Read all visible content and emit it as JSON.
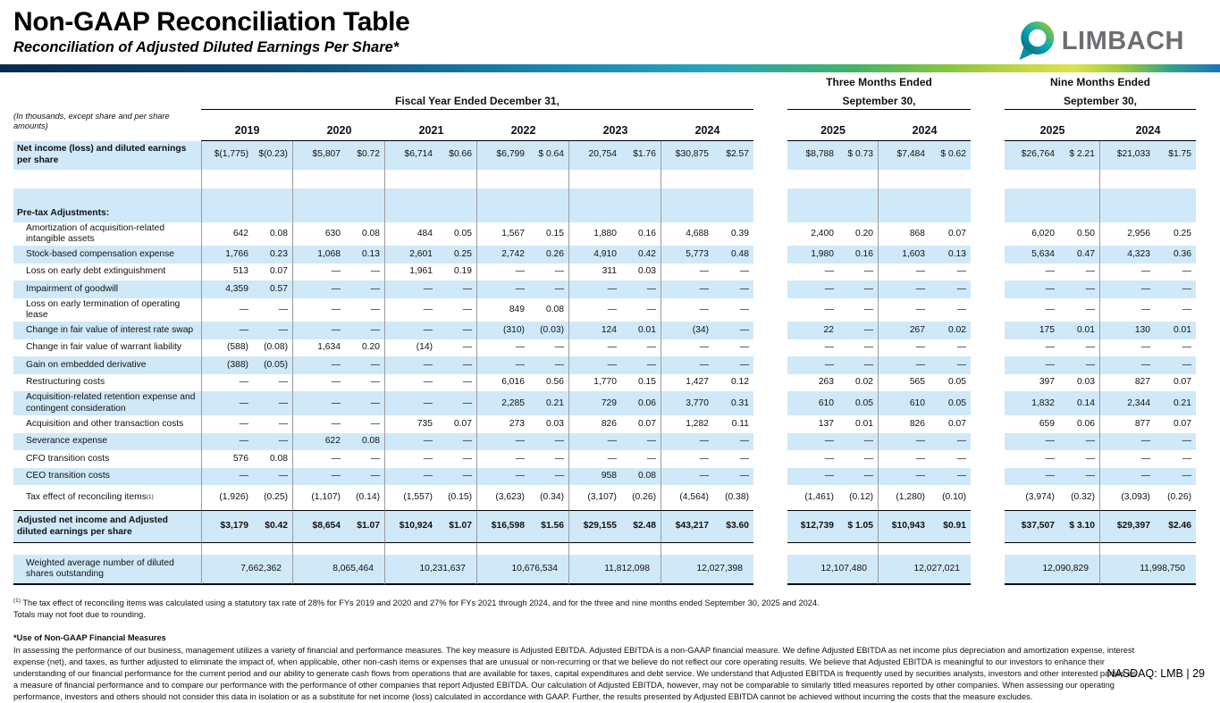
{
  "slide": {
    "title": "Non-GAAP Reconciliation Table",
    "subtitle": "Reconciliation of Adjusted Diluted Earnings Per Share*",
    "brand": "LIMBACH",
    "footer": "NASDAQ: LMB | 29"
  },
  "colors": {
    "stripe_blue": "#cfe9f9",
    "logo_gray": "#6d6e71",
    "accent_teal": "#00a7b5",
    "accent_green": "#8dc63f",
    "accent_navy": "#0a2a4c"
  },
  "table": {
    "units_note": "(In thousands, except share and per share amounts)",
    "groups": [
      {
        "title_line1": "",
        "title_line2": "Fiscal Year Ended December 31,",
        "years": [
          "2019",
          "2020",
          "2021",
          "2022",
          "2023",
          "2024"
        ]
      },
      {
        "title_line1": "Three Months Ended",
        "title_line2": "September 30,",
        "years": [
          "2025",
          "2024"
        ]
      },
      {
        "title_line1": "Nine Months Ended",
        "title_line2": "September 30,",
        "years": [
          "2025",
          "2024"
        ]
      }
    ],
    "rows": [
      {
        "label": "Net income (loss) and diluted earnings per share",
        "kind": "first",
        "blue": true,
        "boldLabel": true,
        "values": [
          "$(1,775)",
          "$(0.23)",
          "$5,807",
          "$0.72",
          "$6,714",
          "$0.66",
          "$6,799",
          "$ 0.64",
          "20,754",
          "$1.76",
          "$30,875",
          "$2.57",
          "$8,788",
          "$ 0.73",
          "$7,484",
          "$ 0.62",
          "$26,764",
          "$ 2.21",
          "$21,033",
          "$1.75"
        ]
      },
      {
        "label": "",
        "kind": "spacer",
        "blue": false
      },
      {
        "label": "Pre-tax Adjustments:",
        "kind": "section",
        "blue": true,
        "boldLabel": true
      },
      {
        "label": "Amortization of acquisition-related intangible assets",
        "kind": "item",
        "blue": false,
        "indent": true,
        "values": [
          "642",
          "0.08",
          "630",
          "0.08",
          "484",
          "0.05",
          "1,567",
          "0.15",
          "1,880",
          "0.16",
          "4,688",
          "0.39",
          "2,400",
          "0.20",
          "868",
          "0.07",
          "6,020",
          "0.50",
          "2,956",
          "0.25"
        ]
      },
      {
        "label": "Stock-based compensation expense",
        "kind": "item",
        "blue": true,
        "indent": true,
        "values": [
          "1,766",
          "0.23",
          "1,068",
          "0.13",
          "2,601",
          "0.25",
          "2,742",
          "0.26",
          "4,910",
          "0.42",
          "5,773",
          "0.48",
          "1,980",
          "0.16",
          "1,603",
          "0.13",
          "5,634",
          "0.47",
          "4,323",
          "0.36"
        ]
      },
      {
        "label": "Loss on early debt extinguishment",
        "kind": "item",
        "blue": false,
        "indent": true,
        "values": [
          "513",
          "0.07",
          "—",
          "—",
          "1,961",
          "0.19",
          "—",
          "—",
          "311",
          "0.03",
          "—",
          "—",
          "—",
          "—",
          "—",
          "—",
          "—",
          "—",
          "—",
          "—"
        ]
      },
      {
        "label": "Impairment of goodwill",
        "kind": "item",
        "blue": true,
        "indent": true,
        "values": [
          "4,359",
          "0.57",
          "—",
          "—",
          "—",
          "—",
          "—",
          "—",
          "—",
          "—",
          "—",
          "—",
          "—",
          "—",
          "—",
          "—",
          "—",
          "—",
          "—",
          "—"
        ]
      },
      {
        "label": "Loss on early termination of operating lease",
        "kind": "item",
        "blue": false,
        "indent": true,
        "values": [
          "—",
          "—",
          "—",
          "—",
          "—",
          "—",
          "849",
          "0.08",
          "—",
          "—",
          "—",
          "—",
          "—",
          "—",
          "—",
          "—",
          "—",
          "—",
          "—",
          "—"
        ]
      },
      {
        "label": "Change in fair value of interest rate swap",
        "kind": "item",
        "blue": true,
        "indent": true,
        "values": [
          "—",
          "—",
          "—",
          "—",
          "—",
          "—",
          "(310)",
          "(0.03)",
          "124",
          "0.01",
          "(34)",
          "—",
          "22",
          "—",
          "267",
          "0.02",
          "175",
          "0.01",
          "130",
          "0.01"
        ]
      },
      {
        "label": "Change in fair value of warrant liability",
        "kind": "item",
        "blue": false,
        "indent": true,
        "values": [
          "(588)",
          "(0.08)",
          "1,634",
          "0.20",
          "(14)",
          "—",
          "—",
          "—",
          "—",
          "—",
          "—",
          "—",
          "—",
          "—",
          "—",
          "—",
          "—",
          "—",
          "—",
          "—"
        ]
      },
      {
        "label": "Gain on embedded derivative",
        "kind": "item",
        "blue": true,
        "indent": true,
        "values": [
          "(388)",
          "(0.05)",
          "—",
          "—",
          "—",
          "—",
          "—",
          "—",
          "—",
          "—",
          "—",
          "—",
          "—",
          "—",
          "—",
          "—",
          "—",
          "—",
          "—",
          "—"
        ]
      },
      {
        "label": "Restructuring costs",
        "kind": "item",
        "blue": false,
        "indent": true,
        "values": [
          "—",
          "—",
          "—",
          "—",
          "—",
          "—",
          "6,016",
          "0.56",
          "1,770",
          "0.15",
          "1,427",
          "0.12",
          "263",
          "0.02",
          "565",
          "0.05",
          "397",
          "0.03",
          "827",
          "0.07"
        ]
      },
      {
        "label": "Acquisition-related retention expense and contingent consideration",
        "kind": "item",
        "blue": true,
        "indent": true,
        "values": [
          "—",
          "—",
          "—",
          "—",
          "—",
          "—",
          "2,285",
          "0.21",
          "729",
          "0.06",
          "3,770",
          "0.31",
          "610",
          "0.05",
          "610",
          "0.05",
          "1,832",
          "0.14",
          "2,344",
          "0.21"
        ]
      },
      {
        "label": "Acquisition and other transaction costs",
        "kind": "item",
        "blue": false,
        "indent": true,
        "values": [
          "—",
          "—",
          "—",
          "—",
          "735",
          "0.07",
          "273",
          "0.03",
          "826",
          "0.07",
          "1,282",
          "0.11",
          "137",
          "0.01",
          "826",
          "0.07",
          "659",
          "0.06",
          "877",
          "0.07"
        ]
      },
      {
        "label": "Severance expense",
        "kind": "item",
        "blue": true,
        "indent": true,
        "values": [
          "—",
          "—",
          "622",
          "0.08",
          "—",
          "—",
          "—",
          "—",
          "—",
          "—",
          "—",
          "—",
          "—",
          "—",
          "—",
          "—",
          "—",
          "—",
          "—",
          "—"
        ]
      },
      {
        "label": "CFO transition costs",
        "kind": "item",
        "blue": false,
        "indent": true,
        "values": [
          "576",
          "0.08",
          "—",
          "—",
          "—",
          "—",
          "—",
          "—",
          "—",
          "—",
          "—",
          "—",
          "—",
          "—",
          "—",
          "—",
          "—",
          "—",
          "—",
          "—"
        ]
      },
      {
        "label": "CEO transition costs",
        "kind": "item",
        "blue": true,
        "indent": true,
        "values": [
          "—",
          "—",
          "—",
          "—",
          "—",
          "—",
          "—",
          "—",
          "958",
          "0.08",
          "—",
          "—",
          "—",
          "—",
          "—",
          "—",
          "—",
          "—",
          "—",
          "—"
        ]
      },
      {
        "label": "Tax effect of reconciling items",
        "sup": "(1)",
        "kind": "tax",
        "blue": false,
        "indent": true,
        "values": [
          "(1,926)",
          "(0.25)",
          "(1,107)",
          "(0.14)",
          "(1,557)",
          "(0.15)",
          "(3,623)",
          "(0.34)",
          "(3,107)",
          "(0.26)",
          "(4,564)",
          "(0.38)",
          "(1,461)",
          "(0.12)",
          "(1,280)",
          "(0.10)",
          "(3,974)",
          "(0.32)",
          "(3,093)",
          "(0.26)"
        ]
      },
      {
        "label": "Adjusted net income and Adjusted diluted earnings per share",
        "kind": "total",
        "blue": true,
        "boldLabel": true,
        "boldValues": true,
        "values": [
          "$3,179",
          "$0.42",
          "$8,654",
          "$1.07",
          "$10,924",
          "$1.07",
          "$16,598",
          "$1.56",
          "$29,155",
          "$2.48",
          "$43,217",
          "$3.60",
          "$12,739",
          "$ 1.05",
          "$10,943",
          "$0.91",
          "$37,507",
          "$ 3.10",
          "$29,397",
          "$2.46"
        ]
      },
      {
        "label": "",
        "kind": "gap",
        "blue": false
      },
      {
        "label": "Weighted average number of diluted shares outstanding",
        "kind": "shares",
        "blue": true,
        "indent": true,
        "values": [
          "7,662,362",
          "8,065,464",
          "10,231,637",
          "10,676,534",
          "11,812,098",
          "12,027,398",
          "12,107,480",
          "12,027,021",
          "12,090,829",
          "11,998,750"
        ]
      }
    ]
  },
  "footnotes": {
    "fn1_sup": "(1)",
    "fn1_line1": " The tax effect of reconciling items was calculated using a statutory tax rate of 28% for FYs 2019 and 2020 and 27% for FYs 2021 through 2024, and for the three and nine months ended September 30, 2025 and 2024.",
    "fn1_line2": "Totals may not foot due to rounding.",
    "use_heading": "*Use of Non-GAAP Financial Measures",
    "use_paragraph": "In assessing the performance of our business, management utilizes a variety of financial and performance measures. The key measure is Adjusted EBITDA. Adjusted EBITDA is a non-GAAP financial measure. We define Adjusted EBITDA as net income plus depreciation and amortization expense, interest expense (net), and taxes, as further adjusted to eliminate the impact of, when applicable, other non-cash items or expenses that are unusual or non-recurring or that we believe do not reflect our core operating results. We believe that Adjusted EBITDA is meaningful to our investors to enhance their understanding of our financial performance for the current period and our ability to generate cash flows from operations that are available for taxes, capital expenditures and debt service. We understand that Adjusted EBITDA is frequently used by securities analysts, investors and other interested parties as a measure of financial performance and to compare our performance with the performance of other companies that report Adjusted EBITDA. Our calculation of Adjusted EBITDA, however, may not be comparable to similarly titled measures reported by other companies. When assessing our operating performance, investors and others should not consider this data in isolation or as a substitute for net income (loss) calculated in accordance with GAAP. Further, the results presented by Adjusted EBITDA cannot be achieved without incurring the costs that the measure excludes."
  }
}
